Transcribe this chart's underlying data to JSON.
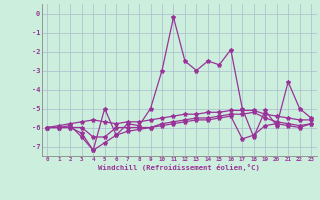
{
  "xlabel": "Windchill (Refroidissement éolien,°C)",
  "bg_color": "#cceedd",
  "line_color": "#993399",
  "grid_color": "#aabbcc",
  "hours": [
    0,
    1,
    2,
    3,
    4,
    5,
    6,
    7,
    8,
    9,
    10,
    11,
    12,
    13,
    14,
    15,
    16,
    17,
    18,
    19,
    20,
    21,
    22,
    23
  ],
  "series1": [
    -6.0,
    -6.0,
    -5.9,
    -6.5,
    -7.2,
    -5.0,
    -6.4,
    -5.8,
    -5.9,
    -5.0,
    -3.0,
    -0.2,
    -2.5,
    -3.0,
    -2.5,
    -2.7,
    -1.9,
    -5.0,
    -6.5,
    -5.1,
    -5.9,
    -3.6,
    -5.0,
    -5.5
  ],
  "series2": [
    -6.0,
    -5.9,
    -5.8,
    -5.7,
    -5.6,
    -5.7,
    -5.8,
    -5.7,
    -5.7,
    -5.6,
    -5.5,
    -5.4,
    -5.3,
    -5.3,
    -5.2,
    -5.2,
    -5.1,
    -5.1,
    -5.1,
    -5.3,
    -5.4,
    -5.5,
    -5.6,
    -5.6
  ],
  "series3": [
    -6.0,
    -6.0,
    -6.0,
    -6.0,
    -6.5,
    -6.5,
    -6.0,
    -6.0,
    -6.0,
    -6.0,
    -5.8,
    -5.7,
    -5.6,
    -5.5,
    -5.5,
    -5.4,
    -5.3,
    -5.3,
    -5.2,
    -5.5,
    -5.7,
    -5.8,
    -5.9,
    -5.8
  ],
  "series4": [
    -6.0,
    -6.0,
    -6.0,
    -6.3,
    -7.2,
    -6.8,
    -6.4,
    -6.2,
    -6.1,
    -6.0,
    -5.9,
    -5.8,
    -5.7,
    -5.6,
    -5.6,
    -5.5,
    -5.4,
    -6.6,
    -6.4,
    -5.9,
    -5.8,
    -5.9,
    -6.0,
    -5.8
  ],
  "ylim": [
    -7.5,
    0.5
  ],
  "yticks": [
    0,
    -1,
    -2,
    -3,
    -4,
    -5,
    -6,
    -7
  ],
  "xticks": [
    0,
    1,
    2,
    3,
    4,
    5,
    6,
    7,
    8,
    9,
    10,
    11,
    12,
    13,
    14,
    15,
    16,
    17,
    18,
    19,
    20,
    21,
    22,
    23
  ],
  "xlim": [
    -0.5,
    23.5
  ]
}
